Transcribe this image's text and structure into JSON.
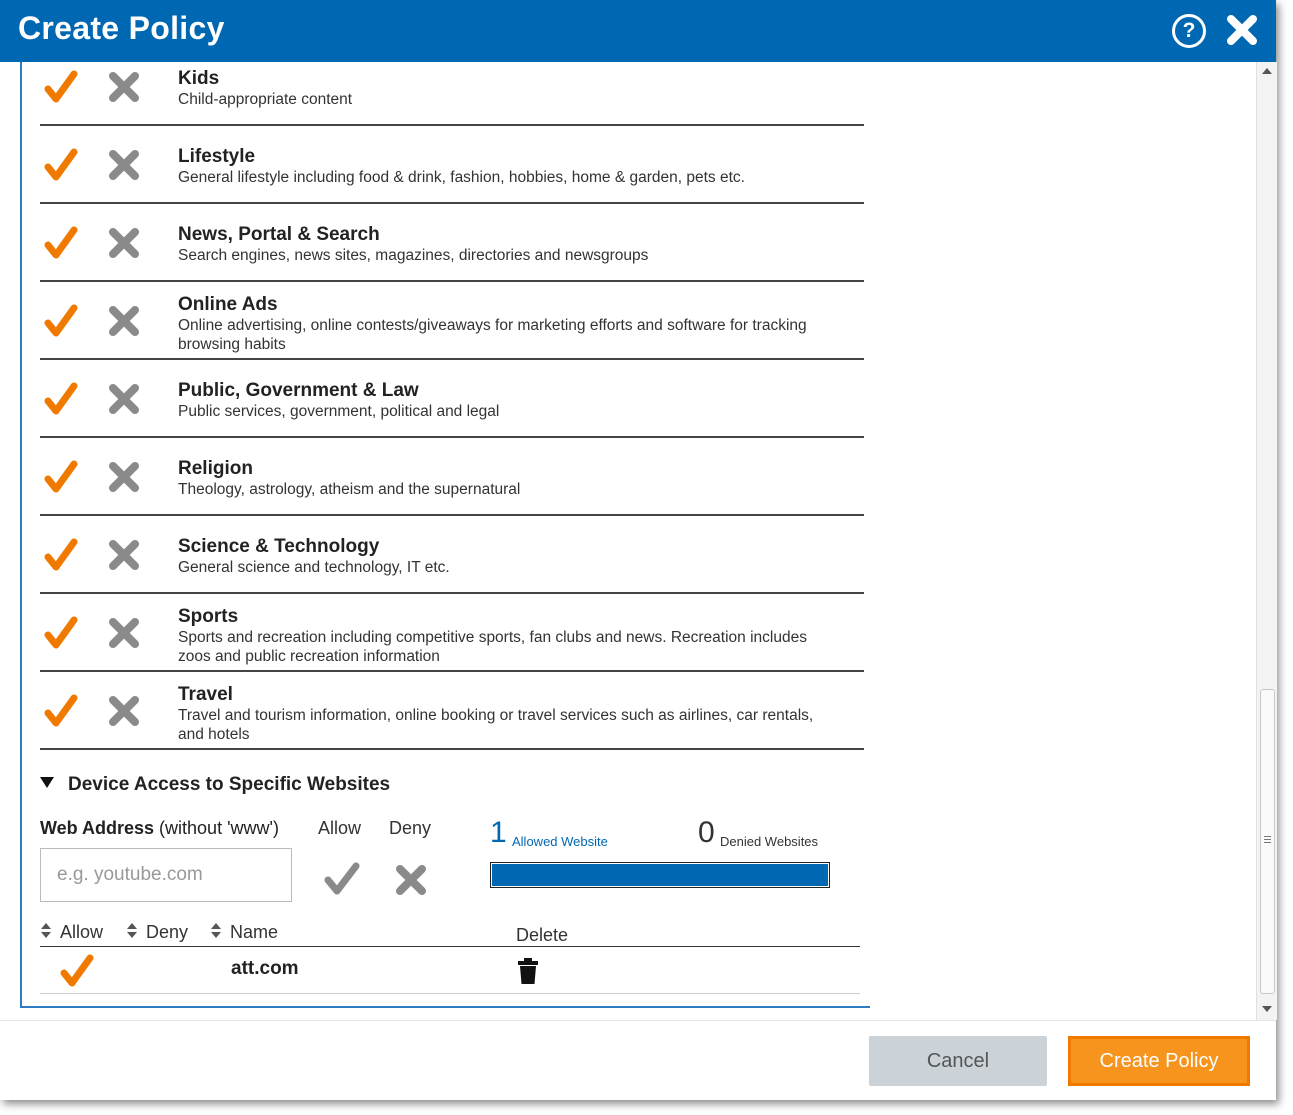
{
  "dialog": {
    "title": "Create Policy"
  },
  "header_icons": [
    "help-icon",
    "close-icon"
  ],
  "categories": [
    {
      "name": "Kids",
      "description": "Child-appropriate content",
      "state": "allow"
    },
    {
      "name": "Lifestyle",
      "description": "General lifestyle including food & drink, fashion, hobbies, home & garden, pets etc.",
      "state": "allow"
    },
    {
      "name": "News, Portal & Search",
      "description": "Search engines, news sites, magazines, directories and newsgroups",
      "state": "allow"
    },
    {
      "name": "Online Ads",
      "description": "Online advertising, online contests/giveaways for marketing efforts and software for tracking browsing habits",
      "state": "allow"
    },
    {
      "name": "Public, Government & Law",
      "description": "Public services, government, political and legal",
      "state": "allow"
    },
    {
      "name": "Religion",
      "description": "Theology, astrology, atheism and the supernatural",
      "state": "allow"
    },
    {
      "name": "Science & Technology",
      "description": "General science and technology, IT etc.",
      "state": "allow"
    },
    {
      "name": "Sports",
      "description": "Sports and recreation including competitive sports, fan clubs and news. Recreation includes zoos and public recreation information",
      "state": "allow"
    },
    {
      "name": "Travel",
      "description": "Travel and tourism information, online booking or travel services such as airlines, car rentals, and hotels",
      "state": "allow"
    }
  ],
  "websites_section": {
    "title": "Device Access to Specific Websites",
    "web_address_label": "Web Address",
    "web_address_hint": "(without 'www')",
    "allow_label": "Allow",
    "deny_label": "Deny",
    "input_placeholder": "e.g. youtube.com",
    "input_value": "",
    "allowed_count": "1",
    "allowed_label": "Allowed Website",
    "denied_count": "0",
    "denied_label": "Denied Websites",
    "allowed_fraction": 1.0,
    "table_headers": {
      "allow": "Allow",
      "deny": "Deny",
      "name": "Name",
      "delete": "Delete"
    },
    "rows": [
      {
        "name": "att.com",
        "state": "allow"
      }
    ]
  },
  "footer": {
    "cancel_label": "Cancel",
    "create_label": "Create Policy"
  },
  "colors": {
    "header_blue": "#0068b3",
    "allow_orange": "#f07a00",
    "deny_gray": "#8a8a8a",
    "create_button": "#f7941d"
  }
}
